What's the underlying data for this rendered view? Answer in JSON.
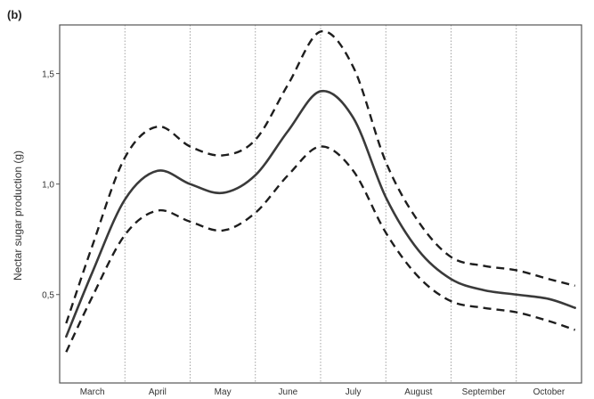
{
  "chart_data": {
    "type": "line",
    "panel_label": "(b)",
    "title": "",
    "xlabel": "",
    "ylabel": "Nectar sugar production (g)",
    "x_categories": [
      "March",
      "April",
      "May",
      "June",
      "July",
      "August",
      "September",
      "October"
    ],
    "xlim": [
      0,
      8
    ],
    "ylim": [
      0.1,
      1.72
    ],
    "y_ticks": [
      0.5,
      1.0,
      1.5
    ],
    "y_tick_labels": [
      "0,5",
      "1,0",
      "1,5"
    ],
    "grid": "vertical-dotted",
    "series": [
      {
        "style": "solid",
        "x": [
          0.1,
          0.5,
          1.0,
          1.5,
          2.0,
          2.5,
          3.0,
          3.5,
          4.0,
          4.5,
          5.0,
          5.5,
          6.0,
          6.5,
          7.0,
          7.5,
          7.9
        ],
        "y": [
          0.31,
          0.6,
          0.93,
          1.06,
          1.0,
          0.96,
          1.04,
          1.24,
          1.42,
          1.3,
          0.94,
          0.7,
          0.57,
          0.52,
          0.5,
          0.48,
          0.44
        ]
      },
      {
        "style": "dashed",
        "x": [
          0.1,
          0.5,
          1.0,
          1.5,
          2.0,
          2.5,
          3.0,
          3.5,
          4.0,
          4.5,
          5.0,
          5.5,
          6.0,
          6.5,
          7.0,
          7.5,
          7.9
        ],
        "y": [
          0.37,
          0.72,
          1.12,
          1.26,
          1.17,
          1.13,
          1.2,
          1.45,
          1.69,
          1.53,
          1.1,
          0.83,
          0.67,
          0.63,
          0.61,
          0.57,
          0.54
        ]
      },
      {
        "style": "dashed",
        "x": [
          0.1,
          0.5,
          1.0,
          1.5,
          2.0,
          2.5,
          3.0,
          3.5,
          4.0,
          4.5,
          5.0,
          5.5,
          6.0,
          6.5,
          7.0,
          7.5,
          7.9
        ],
        "y": [
          0.24,
          0.49,
          0.77,
          0.88,
          0.83,
          0.79,
          0.87,
          1.04,
          1.17,
          1.06,
          0.78,
          0.58,
          0.47,
          0.44,
          0.42,
          0.38,
          0.34
        ]
      }
    ]
  }
}
